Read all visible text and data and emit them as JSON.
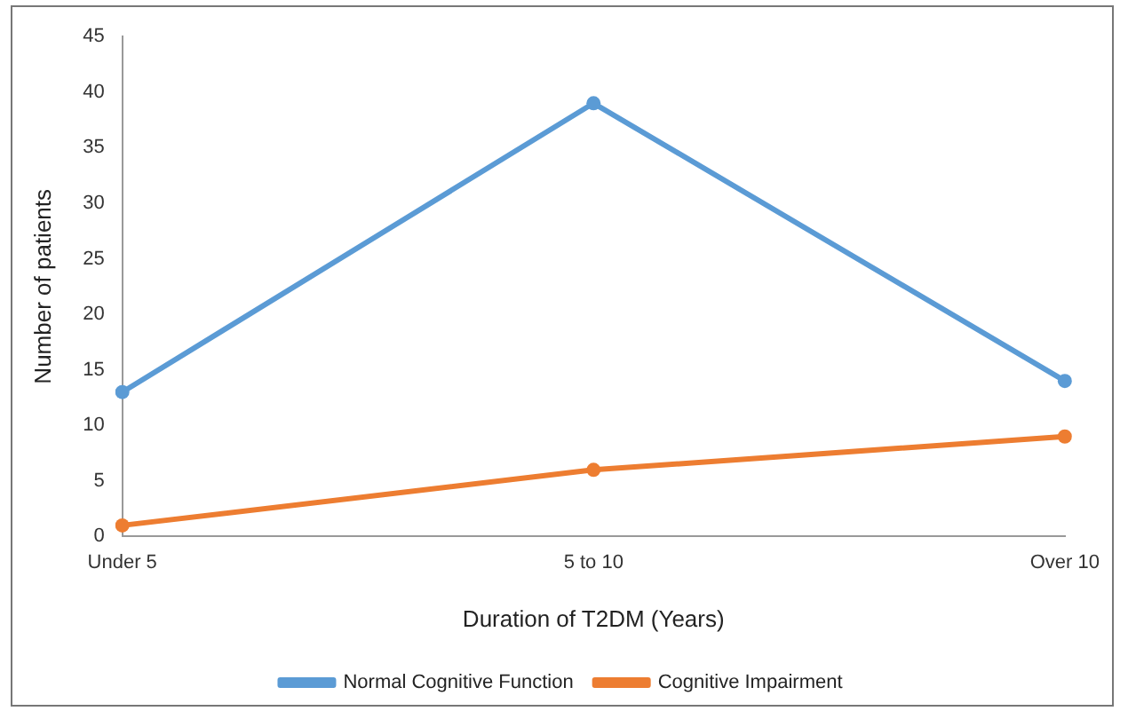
{
  "chart_data": {
    "type": "line",
    "xlabel": "Duration of T2DM (Years)",
    "ylabel": "Number of patients",
    "categories": [
      "Under 5",
      "5 to 10",
      "Over 10"
    ],
    "series": [
      {
        "name": "Normal Cognitive Function",
        "color": "#5b9bd5",
        "values": [
          13,
          39,
          14
        ]
      },
      {
        "name": "Cognitive Impairment",
        "color": "#ed7d31",
        "values": [
          1,
          6,
          9
        ]
      }
    ],
    "ylim": [
      0,
      45
    ],
    "yticks": [
      0,
      5,
      10,
      15,
      20,
      25,
      30,
      35,
      40,
      45
    ],
    "grid": false,
    "legend": "bottom",
    "marker": "circle",
    "line_style": "solid"
  }
}
